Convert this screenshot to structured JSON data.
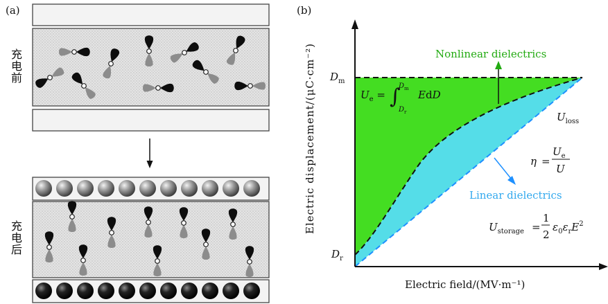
{
  "panel_a": {
    "label": "(a)",
    "before_label": "充电前",
    "after_label": "充电后"
  },
  "panel_b": {
    "label": "(b)",
    "y_axis_label": "Electric displacement/(μC·cm⁻²)",
    "x_axis_label": "Electric field/(MV·m⁻¹)",
    "dm_label": "D",
    "dm_sub": "m",
    "dr_label": "D",
    "dr_sub": "r",
    "nonlinear_label": "Nonlinear dielectrics",
    "linear_label": "Linear dielectrics",
    "u_loss": "U",
    "u_loss_sub": "loss",
    "colors": {
      "nonlinear_fill": "#44dd22",
      "linear_fill": "#55dde8",
      "nonlinear_text": "#22aa11",
      "linear_text": "#33a9ee",
      "arrow_green": "#22aa11",
      "arrow_blue": "#1e90ff"
    }
  }
}
